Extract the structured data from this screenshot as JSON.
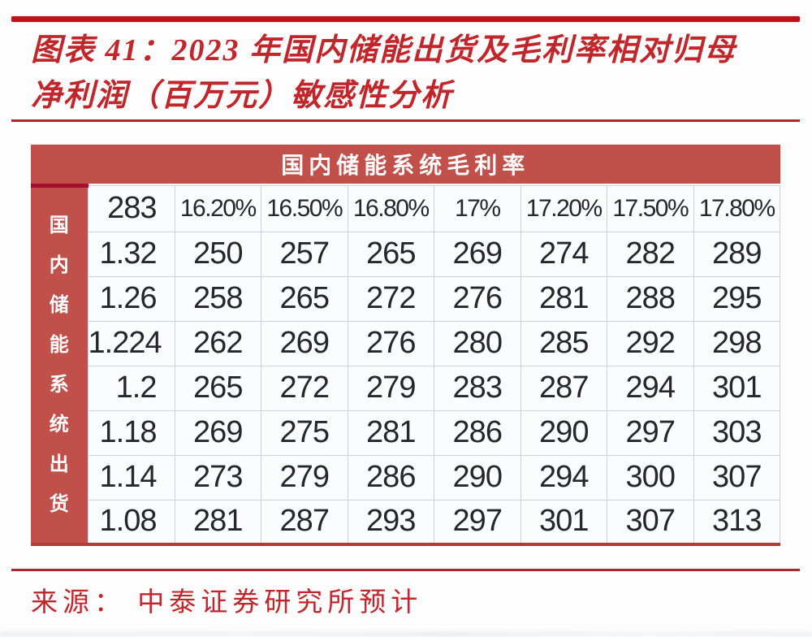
{
  "figure": {
    "title_line1": "图表 41：2023 年国内储能出货及毛利率相对归母",
    "title_line2": "净利润（百万元）敏感性分析",
    "source": "来源： 中泰证券研究所预计"
  },
  "table": {
    "banner": "国内储能系统毛利率",
    "row_axis_label": "国内储能系统出货",
    "corner_value": "283",
    "col_headers": [
      "16.20%",
      "16.50%",
      "16.80%",
      "17%",
      "17.20%",
      "17.50%",
      "17.80%"
    ],
    "rows": [
      {
        "header": "1.32",
        "values": [
          "250",
          "257",
          "265",
          "269",
          "274",
          "282",
          "289"
        ]
      },
      {
        "header": "1.26",
        "values": [
          "258",
          "265",
          "272",
          "276",
          "281",
          "288",
          "295"
        ]
      },
      {
        "header": "1.224",
        "values": [
          "262",
          "269",
          "276",
          "280",
          "285",
          "292",
          "298"
        ]
      },
      {
        "header": "1.2",
        "values": [
          "265",
          "272",
          "279",
          "283",
          "287",
          "294",
          "301"
        ]
      },
      {
        "header": "1.18",
        "values": [
          "269",
          "275",
          "281",
          "286",
          "290",
          "297",
          "303"
        ]
      },
      {
        "header": "1.14",
        "values": [
          "273",
          "279",
          "286",
          "290",
          "294",
          "300",
          "307"
        ]
      },
      {
        "header": "1.08",
        "values": [
          "281",
          "287",
          "293",
          "297",
          "301",
          "307",
          "313"
        ]
      }
    ]
  },
  "chart_data": {
    "type": "table",
    "title": "图表 41：2023 年国内储能出货及毛利率相对归母净利润（百万元）敏感性分析",
    "column_axis_title": "国内储能系统毛利率",
    "row_axis_title": "国内储能系统出货",
    "base_value": "283",
    "columns": [
      "16.20%",
      "16.50%",
      "16.80%",
      "17%",
      "17.20%",
      "17.50%",
      "17.80%"
    ],
    "row_labels": [
      "1.32",
      "1.26",
      "1.224",
      "1.2",
      "1.18",
      "1.14",
      "1.08"
    ],
    "values": [
      [
        250,
        257,
        265,
        269,
        274,
        282,
        289
      ],
      [
        258,
        265,
        272,
        276,
        281,
        288,
        295
      ],
      [
        262,
        269,
        276,
        280,
        285,
        292,
        298
      ],
      [
        265,
        272,
        279,
        283,
        287,
        294,
        301
      ],
      [
        269,
        275,
        281,
        286,
        290,
        297,
        303
      ],
      [
        273,
        279,
        286,
        290,
        294,
        300,
        307
      ],
      [
        281,
        287,
        293,
        297,
        301,
        307,
        313
      ]
    ]
  },
  "colors": {
    "accent_bar": "#bf1016",
    "title_red": "#c1262b",
    "banner_red": "#c1504a",
    "dark_accent": "#a50f2f",
    "table_bottom_border": "#b23c37",
    "cell_border": "#ccd1dc",
    "cell_text": "#26262c",
    "source_red": "#c0272c"
  }
}
